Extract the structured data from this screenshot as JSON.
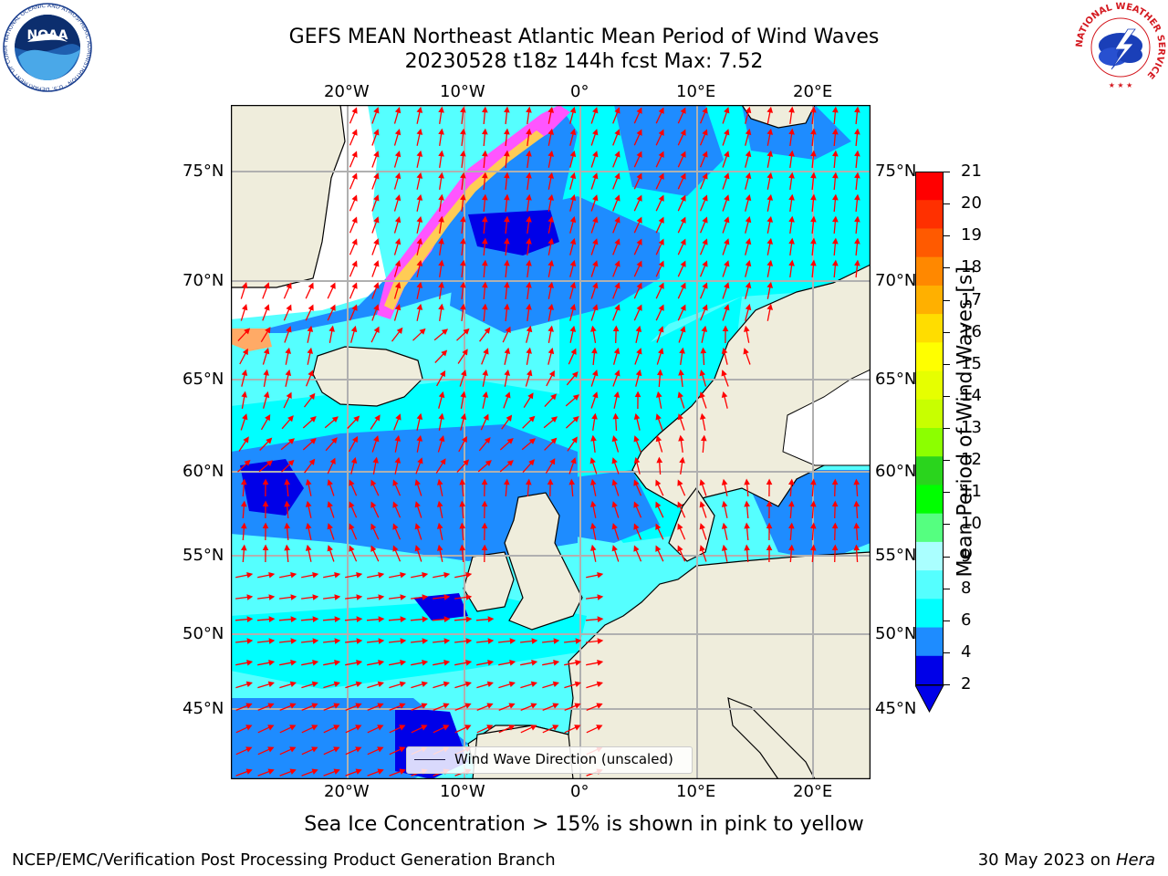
{
  "title": {
    "line1": "GEFS MEAN Northeast Atlantic Mean Period of Wind Waves",
    "line2": "20230528 t18z 144h fcst    Max: 7.52"
  },
  "map": {
    "lon_labels": [
      "20°W",
      "10°W",
      "0°",
      "10°E",
      "20°E"
    ],
    "lat_labels": [
      "75°N",
      "70°N",
      "65°N",
      "60°N",
      "55°N",
      "50°N",
      "45°N"
    ],
    "legend_label": "Wind Wave Direction (unscaled)",
    "colors": {
      "land": "#efeddc",
      "ice_free_white": "#ffffff",
      "deep_blue": "#0000e8",
      "mid_blue": "#1e8cff",
      "cyan": "#00ffff",
      "light_cyan": "#55ffff",
      "arrow": "#ff0000"
    }
  },
  "colorbar": {
    "label": "Mean Period of Wind Waves [s]",
    "ticks": [
      "21",
      "20",
      "19",
      "18",
      "17",
      "16",
      "15",
      "14",
      "13",
      "12",
      "11",
      "10",
      "9",
      "8",
      "6",
      "4",
      "2"
    ],
    "colors": [
      "#ff0000",
      "#ff3000",
      "#ff5a00",
      "#ff8800",
      "#ffb000",
      "#ffdd00",
      "#ffff00",
      "#e6ff00",
      "#c8ff00",
      "#8cff00",
      "#2ad41d",
      "#00ff00",
      "#55ff80",
      "#aaffff",
      "#55ffff",
      "#00ffff",
      "#1e8cff",
      "#0000e8"
    ]
  },
  "caption": "Sea Ice Concentration > 15% is shown in pink to yellow",
  "footer": {
    "left": "NCEP/EMC/Verification Post Processing Product Generation Branch",
    "right_prefix": "30 May 2023 on ",
    "right_machine": "Hera"
  },
  "logos": {
    "noaa_text": "NOAA",
    "noaa_ring": "NATIONAL OCEANIC AND ATMOSPHERIC ADMINISTRATION · U.S. DEPARTMENT OF COMMERCE",
    "nws_ring": "NATIONAL WEATHER SERVICE"
  }
}
